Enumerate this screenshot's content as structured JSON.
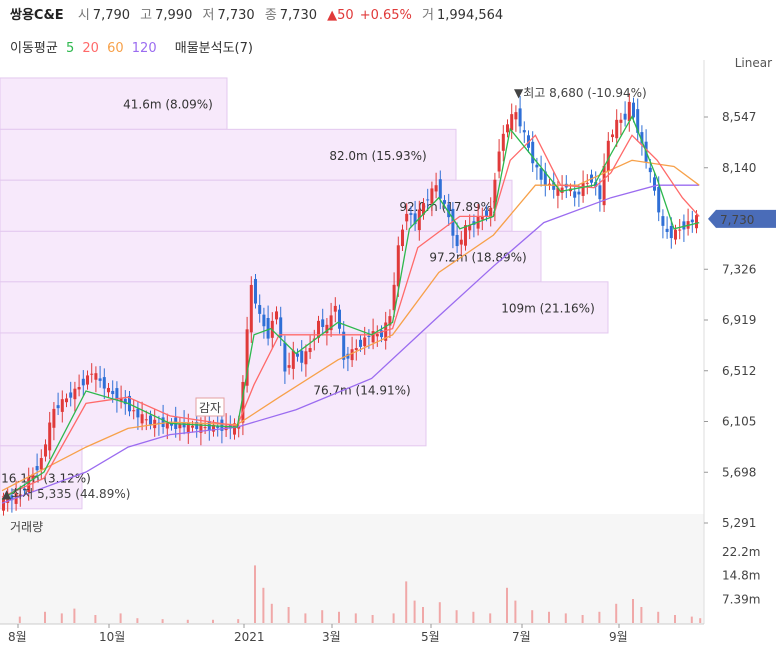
{
  "header": {
    "name": "쌍용C&E",
    "open_label": "시",
    "open": "7,790",
    "high_label": "고",
    "high": "7,990",
    "low_label": "저",
    "low": "7,730",
    "close_label": "종",
    "close": "7,730",
    "change": "▲50",
    "change_pct": "+0.65%",
    "volume_label": "거",
    "volume": "1,994,564"
  },
  "indicators": {
    "ma_label": "이동평균",
    "ma5": "5",
    "ma20": "20",
    "ma60": "60",
    "ma120": "120",
    "vp_label": "매물분석도(7)"
  },
  "scale_label": "Linear",
  "volume_title": "거래량",
  "colors": {
    "up": "#e03a3a",
    "down": "#2f6fd6",
    "ma5": "#2db84d",
    "ma20": "#ff6a6a",
    "ma60": "#f7a14a",
    "ma120": "#9b6cf0",
    "vp_fill": "#f7e9fb",
    "vp_stroke": "#e3c8ef",
    "last_price_bg": "#4a6cb8"
  },
  "chart_data": {
    "type": "candlestick",
    "price_ticks": [
      8547,
      8140,
      7326,
      6919,
      6512,
      6105,
      5698,
      5291
    ],
    "price_tick_labels": [
      "8,547",
      "8,140",
      "7,326",
      "6,919",
      "6,512",
      "6,105",
      "5,698",
      "5,291"
    ],
    "last_price": 7730,
    "last_price_label": "7,730",
    "x_tick_labels": [
      "8월",
      "10월",
      "2021",
      "3월",
      "5월",
      "7월",
      "9월"
    ],
    "volume_ticks": [
      22.2,
      14.8,
      7.39
    ],
    "volume_tick_labels": [
      "22.2m",
      "14.8m",
      "7.39m"
    ],
    "volume_profile": [
      {
        "price_from": 8448,
        "price_to": 8860,
        "label": "41.6m (8.09%)"
      },
      {
        "price_from": 8040,
        "price_to": 8448,
        "label": "82.0m (15.93%)"
      },
      {
        "price_from": 7630,
        "price_to": 8040,
        "label": "92.0m (17.89%)"
      },
      {
        "price_from": 7225,
        "price_to": 7630,
        "label": "97.2m (18.89%)"
      },
      {
        "price_from": 6815,
        "price_to": 7225,
        "label": "109m (21.16%)"
      },
      {
        "price_from": 5910,
        "price_to": 6815,
        "label": "76.7m (14.91%)"
      },
      {
        "price_from": 5405,
        "price_to": 5910,
        "label": "16.1m (3.12%)"
      }
    ],
    "annotations": [
      {
        "text": "▼최고 8,680 (-10.94%)",
        "price": 8680
      },
      {
        "text": "▲최저 5,335 (44.89%)",
        "price": 5335
      },
      {
        "text": "감자",
        "price": 6020
      }
    ],
    "price_path": [
      [
        0,
        5450
      ],
      [
        5,
        5520
      ],
      [
        10,
        5800
      ],
      [
        13,
        6200
      ],
      [
        18,
        6350
      ],
      [
        22,
        6500
      ],
      [
        26,
        6350
      ],
      [
        30,
        6250
      ],
      [
        33,
        6150
      ],
      [
        36,
        6100
      ],
      [
        40,
        6080
      ],
      [
        44,
        6070
      ],
      [
        48,
        6060
      ],
      [
        52,
        6060
      ],
      [
        56,
        6060
      ],
      [
        57,
        6060
      ],
      [
        60,
        7200
      ],
      [
        62,
        6950
      ],
      [
        64,
        6800
      ],
      [
        66,
        7000
      ],
      [
        68,
        6500
      ],
      [
        70,
        6650
      ],
      [
        72,
        6600
      ],
      [
        74,
        6700
      ],
      [
        76,
        6900
      ],
      [
        78,
        6850
      ],
      [
        80,
        7050
      ],
      [
        82,
        6600
      ],
      [
        85,
        6700
      ],
      [
        88,
        6800
      ],
      [
        91,
        6800
      ],
      [
        93,
        6950
      ],
      [
        95,
        7500
      ],
      [
        97,
        7800
      ],
      [
        99,
        7700
      ],
      [
        101,
        7850
      ],
      [
        104,
        8000
      ],
      [
        107,
        7750
      ],
      [
        109,
        7500
      ],
      [
        111,
        7650
      ],
      [
        113,
        7700
      ],
      [
        115,
        7750
      ],
      [
        117,
        7800
      ],
      [
        119,
        8300
      ],
      [
        121,
        8500
      ],
      [
        123,
        8580
      ],
      [
        125,
        8400
      ],
      [
        127,
        8200
      ],
      [
        129,
        8050
      ],
      [
        131,
        8000
      ],
      [
        133,
        7950
      ],
      [
        135,
        8000
      ],
      [
        137,
        7900
      ],
      [
        139,
        8000
      ],
      [
        141,
        8050
      ],
      [
        143,
        7900
      ],
      [
        145,
        8350
      ],
      [
        147,
        8500
      ],
      [
        149,
        8550
      ],
      [
        150,
        8650
      ],
      [
        152,
        8450
      ],
      [
        154,
        8200
      ],
      [
        156,
        7950
      ],
      [
        158,
        7650
      ],
      [
        160,
        7600
      ],
      [
        162,
        7650
      ],
      [
        164,
        7700
      ],
      [
        166,
        7730
      ]
    ],
    "ma5": [
      [
        0,
        5480
      ],
      [
        10,
        5700
      ],
      [
        20,
        6350
      ],
      [
        30,
        6250
      ],
      [
        40,
        6090
      ],
      [
        56,
        6060
      ],
      [
        60,
        6800
      ],
      [
        64,
        6850
      ],
      [
        70,
        6650
      ],
      [
        80,
        6900
      ],
      [
        88,
        6800
      ],
      [
        93,
        6900
      ],
      [
        97,
        7650
      ],
      [
        104,
        7900
      ],
      [
        109,
        7650
      ],
      [
        117,
        7750
      ],
      [
        121,
        8450
      ],
      [
        127,
        8200
      ],
      [
        133,
        7950
      ],
      [
        141,
        8000
      ],
      [
        145,
        8250
      ],
      [
        150,
        8550
      ],
      [
        156,
        8050
      ],
      [
        160,
        7650
      ],
      [
        166,
        7700
      ]
    ],
    "ma20": [
      [
        0,
        5500
      ],
      [
        10,
        5650
      ],
      [
        20,
        6250
      ],
      [
        30,
        6300
      ],
      [
        40,
        6150
      ],
      [
        56,
        6070
      ],
      [
        60,
        6400
      ],
      [
        66,
        6800
      ],
      [
        76,
        6800
      ],
      [
        88,
        6800
      ],
      [
        93,
        6850
      ],
      [
        99,
        7500
      ],
      [
        109,
        7750
      ],
      [
        117,
        7750
      ],
      [
        121,
        8200
      ],
      [
        127,
        8400
      ],
      [
        133,
        8000
      ],
      [
        141,
        7980
      ],
      [
        145,
        8100
      ],
      [
        150,
        8400
      ],
      [
        156,
        8200
      ],
      [
        162,
        7900
      ],
      [
        166,
        7750
      ]
    ],
    "ma60": [
      [
        0,
        5550
      ],
      [
        20,
        5900
      ],
      [
        30,
        6050
      ],
      [
        40,
        6100
      ],
      [
        56,
        6080
      ],
      [
        66,
        6300
      ],
      [
        80,
        6600
      ],
      [
        93,
        6800
      ],
      [
        104,
        7300
      ],
      [
        117,
        7600
      ],
      [
        127,
        8000
      ],
      [
        137,
        8000
      ],
      [
        150,
        8200
      ],
      [
        160,
        8150
      ],
      [
        166,
        8000
      ]
    ],
    "ma120": [
      [
        0,
        5450
      ],
      [
        20,
        5700
      ],
      [
        30,
        5900
      ],
      [
        40,
        6000
      ],
      [
        56,
        6060
      ],
      [
        70,
        6200
      ],
      [
        88,
        6450
      ],
      [
        104,
        6950
      ],
      [
        117,
        7350
      ],
      [
        129,
        7700
      ],
      [
        145,
        7900
      ],
      [
        156,
        8000
      ],
      [
        166,
        8000
      ]
    ],
    "volume_bars": [
      [
        4,
        2.0
      ],
      [
        10,
        3.5
      ],
      [
        14,
        3.0
      ],
      [
        17,
        4.5
      ],
      [
        22,
        2.5
      ],
      [
        28,
        3.0
      ],
      [
        32,
        1.5
      ],
      [
        38,
        1.2
      ],
      [
        44,
        1.0
      ],
      [
        50,
        1.0
      ],
      [
        56,
        1.2
      ],
      [
        60,
        18.0
      ],
      [
        62,
        11.0
      ],
      [
        64,
        6.0
      ],
      [
        68,
        5.0
      ],
      [
        72,
        3.0
      ],
      [
        76,
        4.0
      ],
      [
        80,
        3.5
      ],
      [
        84,
        3.0
      ],
      [
        88,
        2.5
      ],
      [
        93,
        3.0
      ],
      [
        96,
        13.0
      ],
      [
        98,
        7.0
      ],
      [
        100,
        5.0
      ],
      [
        104,
        6.5
      ],
      [
        108,
        4.0
      ],
      [
        112,
        3.5
      ],
      [
        116,
        3.0
      ],
      [
        120,
        11.0
      ],
      [
        122,
        7.0
      ],
      [
        126,
        4.0
      ],
      [
        130,
        3.5
      ],
      [
        134,
        3.0
      ],
      [
        138,
        2.5
      ],
      [
        142,
        3.5
      ],
      [
        146,
        6.0
      ],
      [
        150,
        7.5
      ],
      [
        152,
        5.0
      ],
      [
        156,
        3.5
      ],
      [
        160,
        2.5
      ],
      [
        164,
        2.0
      ],
      [
        166,
        1.5
      ]
    ]
  }
}
